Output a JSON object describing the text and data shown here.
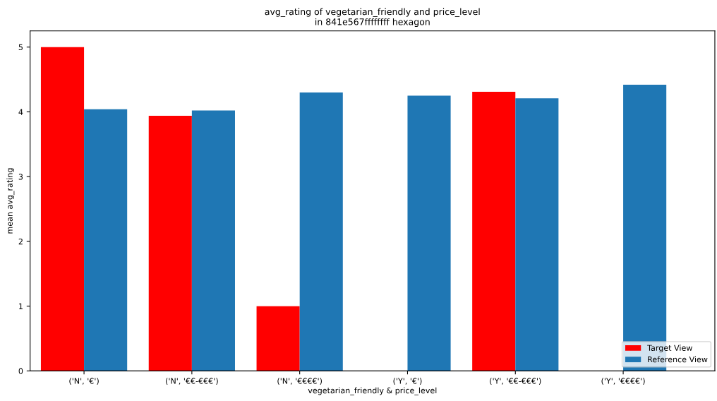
{
  "chart_data": {
    "type": "bar",
    "title": "avg_rating of vegetarian_friendly and price_level\nin 841e567ffffffff hexagon",
    "xlabel": "vegetarian_friendly & price_level",
    "ylabel": "mean avg_rating",
    "categories": [
      "('N', '€')",
      "('N', '€€-€€€')",
      "('N', '€€€€')",
      "('Y', '€')",
      "('Y', '€€-€€€')",
      "('Y', '€€€€')"
    ],
    "series": [
      {
        "name": "Target View",
        "color": "#ff0000",
        "values": [
          5.0,
          3.94,
          1.0,
          null,
          4.31,
          null
        ]
      },
      {
        "name": "Reference View",
        "color": "#1f77b4",
        "values": [
          4.04,
          4.02,
          4.3,
          4.25,
          4.21,
          4.42
        ]
      }
    ],
    "ylim": [
      0,
      5.25
    ],
    "yticks": [
      0,
      1,
      2,
      3,
      4,
      5
    ],
    "grid": false,
    "legend": "lower right"
  }
}
